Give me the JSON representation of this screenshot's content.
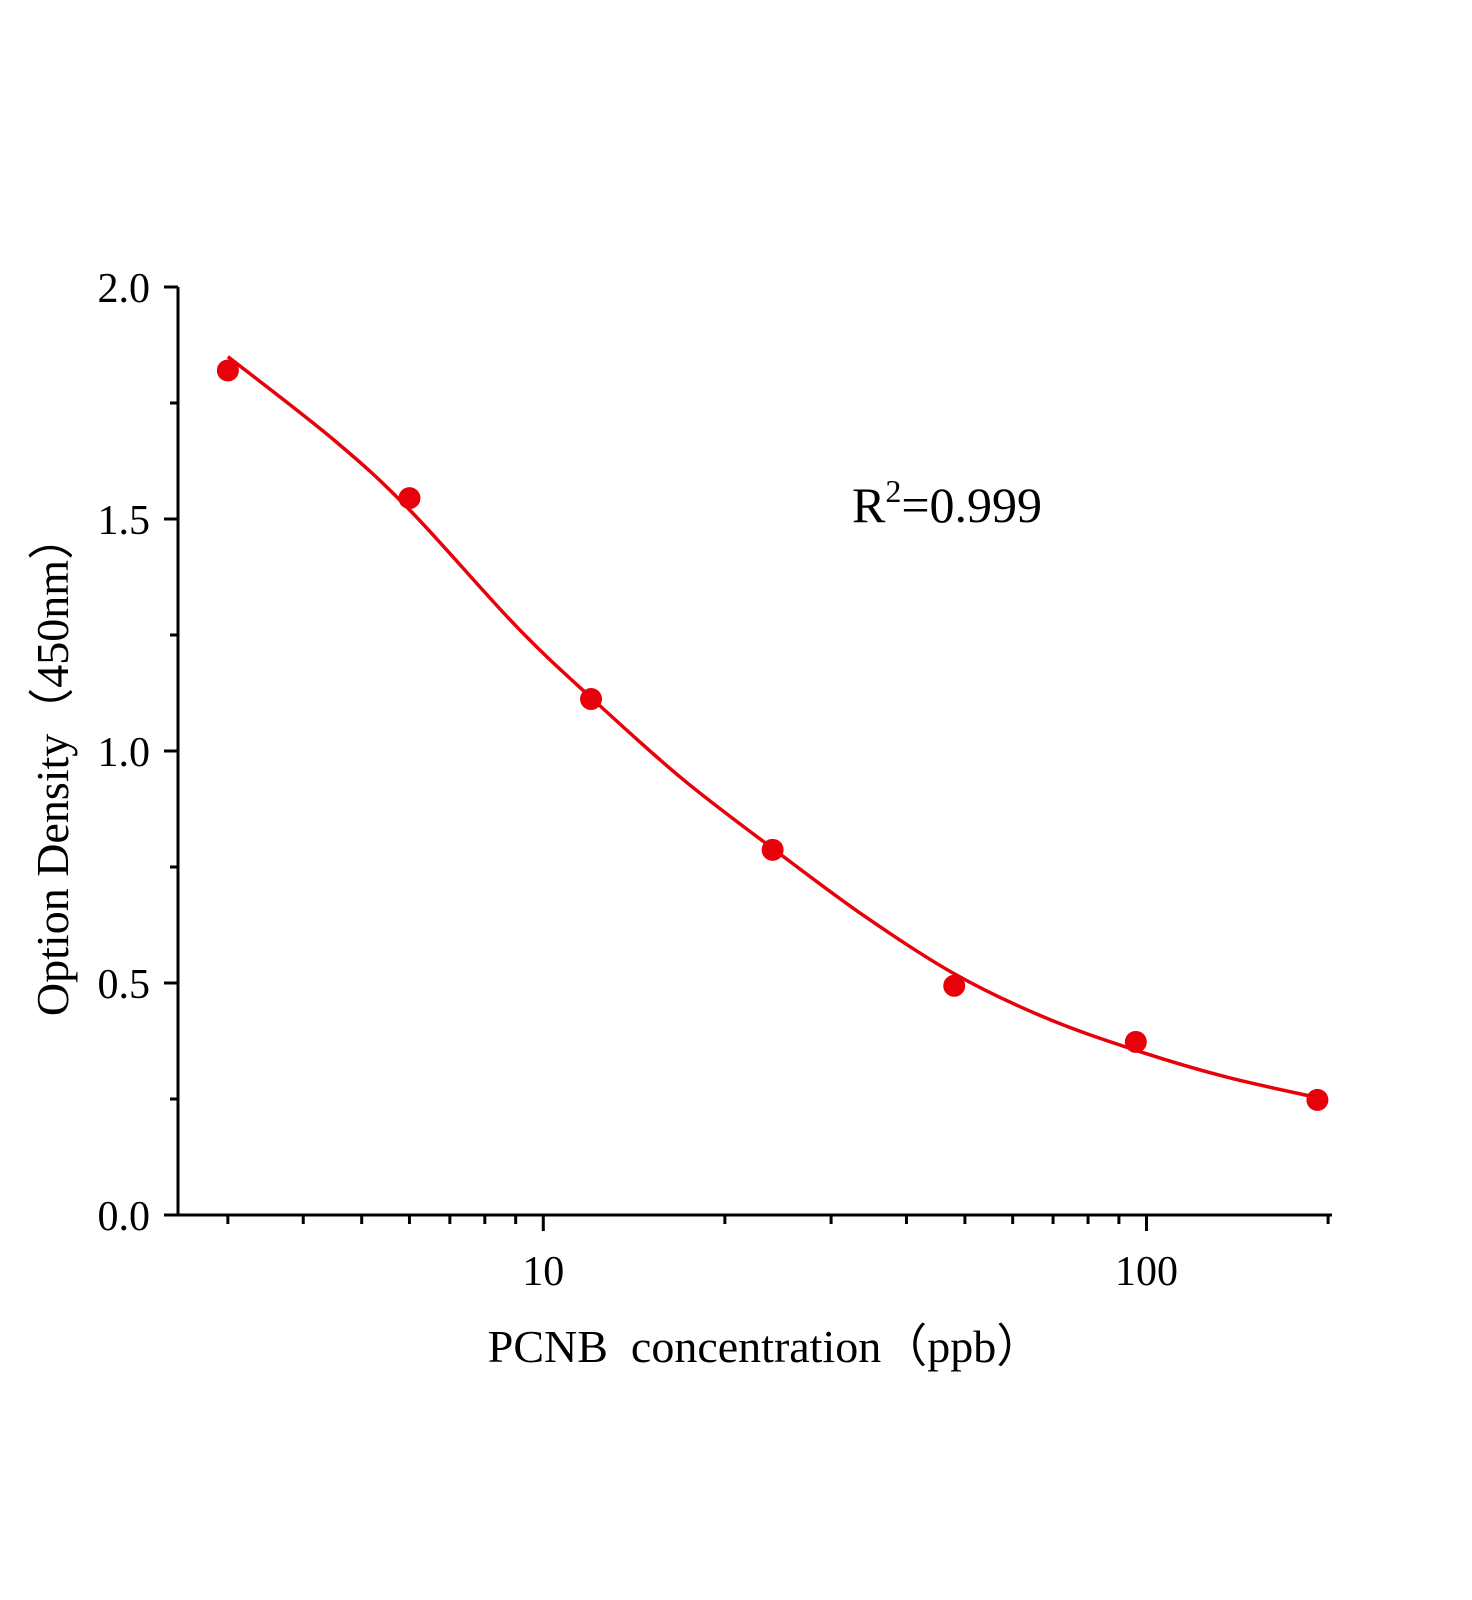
{
  "chart_data": {
    "type": "scatter",
    "title": "",
    "xlabel": "PCNB  concentration（ppb）",
    "ylabel": "Option Density（450nm）",
    "xscale": "log",
    "xlim": [
      2.48,
      203
    ],
    "ylim": [
      0,
      2.0
    ],
    "x_ticks": [
      10,
      100
    ],
    "x_tick_labels": [
      "10",
      "100"
    ],
    "x_minor_ticks": [
      3,
      4,
      5,
      6,
      7,
      8,
      9,
      20,
      30,
      40,
      50,
      60,
      70,
      80,
      90,
      200
    ],
    "y_ticks": [
      0,
      0.5,
      1.0,
      1.5,
      2.0
    ],
    "y_tick_labels": [
      "0.0",
      "0.5",
      "1.0",
      "1.5",
      "2.0"
    ],
    "y_minor_ticks": [
      0.25,
      0.75,
      1.25,
      1.75
    ],
    "grid": false,
    "annotation": {
      "base": "R",
      "sup": "2",
      "rest": "=0.999"
    },
    "color": "#e8000b",
    "series": [
      {
        "kind": "points",
        "x": [
          3,
          6,
          12,
          24,
          48,
          96,
          192
        ],
        "y": [
          1.82,
          1.545,
          1.112,
          0.787,
          0.494,
          0.373,
          0.248
        ]
      },
      {
        "kind": "fitted-curve",
        "x": [
          3,
          4.5,
          6,
          9,
          12,
          17,
          24,
          34,
          48,
          68,
          96,
          135,
          192
        ],
        "y": [
          1.85,
          1.67,
          1.52,
          1.27,
          1.115,
          0.94,
          0.79,
          0.645,
          0.52,
          0.425,
          0.355,
          0.298,
          0.253
        ]
      }
    ]
  }
}
